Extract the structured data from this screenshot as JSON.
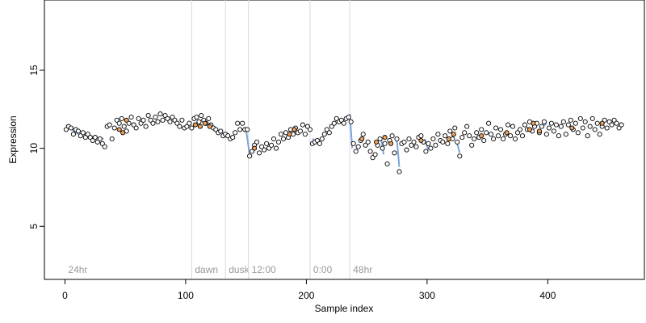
{
  "chart_data": {
    "type": "scatter",
    "title": "",
    "xlabel": "Sample index",
    "ylabel": "Expression",
    "xlim": [
      -17,
      480
    ],
    "ylim": [
      1.6,
      19.5
    ],
    "xticks": [
      0,
      100,
      200,
      300,
      400
    ],
    "yticks": [
      5,
      10,
      15
    ],
    "grid": false,
    "legend": "none",
    "colors": {
      "point_stroke": "#000000",
      "point_fill_default": "#ffffff",
      "highlight_blue": "#5b8fd6",
      "highlight_orange": "#f0a05a",
      "segment_line": "#d9d9d9",
      "segment_label": "#999999"
    },
    "segments": [
      {
        "x": 0,
        "label": "24hr"
      },
      {
        "x": 105,
        "label": "dawn"
      },
      {
        "x": 133,
        "label": "dusk"
      },
      {
        "x": 152,
        "label": "12:00"
      },
      {
        "x": 203,
        "label": "0:00"
      },
      {
        "x": 236,
        "label": "48hr"
      }
    ],
    "series": [
      {
        "points": [
          [
            1,
            11.2
          ],
          [
            3,
            11.4
          ],
          [
            5,
            11.3
          ],
          [
            7,
            10.9
          ],
          [
            9,
            11.2
          ],
          [
            11,
            11.1
          ],
          [
            13,
            10.8
          ],
          [
            15,
            11.0
          ],
          [
            17,
            10.7
          ],
          [
            19,
            10.9
          ],
          [
            21,
            10.7
          ],
          [
            23,
            10.5
          ],
          [
            25,
            10.7
          ],
          [
            27,
            10.4
          ],
          [
            29,
            10.6
          ],
          [
            31,
            10.3
          ],
          [
            33,
            10.1
          ],
          [
            35,
            11.4
          ],
          [
            37,
            11.5
          ],
          [
            39,
            10.6
          ],
          [
            41,
            11.3
          ],
          [
            43,
            11.8
          ],
          [
            45,
            11.6
          ],
          [
            47,
            11.9
          ],
          [
            49,
            11.4
          ],
          [
            51,
            11.1
          ],
          [
            53,
            11.6
          ],
          [
            55,
            12.0
          ],
          [
            57,
            11.5
          ],
          [
            59,
            11.3
          ],
          [
            61,
            11.9
          ],
          [
            63,
            11.6
          ],
          [
            65,
            11.8
          ],
          [
            67,
            11.4
          ],
          [
            69,
            12.1
          ],
          [
            71,
            11.8
          ],
          [
            73,
            11.6
          ],
          [
            75,
            12.0
          ],
          [
            77,
            11.7
          ],
          [
            79,
            12.2
          ],
          [
            81,
            11.8
          ],
          [
            83,
            12.1
          ],
          [
            85,
            11.9
          ],
          [
            87,
            11.7
          ],
          [
            89,
            12.0
          ],
          [
            91,
            11.8
          ],
          [
            93,
            11.6
          ],
          [
            95,
            11.4
          ],
          [
            97,
            11.8
          ],
          [
            99,
            11.3
          ],
          [
            101,
            11.4
          ],
          [
            103,
            11.6
          ],
          [
            105,
            11.3
          ],
          [
            107,
            11.9
          ],
          [
            109,
            12.0
          ],
          [
            111,
            11.7
          ],
          [
            113,
            12.1
          ],
          [
            115,
            11.8
          ],
          [
            117,
            11.6
          ],
          [
            119,
            11.9
          ],
          [
            121,
            11.5
          ],
          [
            123,
            11.3
          ],
          [
            125,
            11.2
          ],
          [
            127,
            11.0
          ],
          [
            129,
            11.1
          ],
          [
            131,
            10.8
          ],
          [
            133,
            10.9
          ],
          [
            135,
            10.8
          ],
          [
            137,
            10.6
          ],
          [
            139,
            10.7
          ],
          [
            141,
            11.0
          ],
          [
            143,
            11.6
          ],
          [
            145,
            11.2
          ],
          [
            147,
            11.6
          ],
          [
            149,
            11.2
          ],
          [
            151,
            11.2
          ],
          [
            153,
            9.5
          ],
          [
            155,
            9.8
          ],
          [
            157,
            10.2
          ],
          [
            159,
            10.4
          ],
          [
            161,
            9.7
          ],
          [
            163,
            10.1
          ],
          [
            165,
            9.9
          ],
          [
            167,
            10.3
          ],
          [
            169,
            10.0
          ],
          [
            171,
            10.2
          ],
          [
            173,
            10.6
          ],
          [
            175,
            10.0
          ],
          [
            177,
            10.4
          ],
          [
            179,
            10.9
          ],
          [
            181,
            10.6
          ],
          [
            183,
            11.0
          ],
          [
            185,
            10.7
          ],
          [
            187,
            11.2
          ],
          [
            189,
            10.9
          ],
          [
            191,
            11.3
          ],
          [
            193,
            11.0
          ],
          [
            195,
            11.1
          ],
          [
            197,
            11.5
          ],
          [
            199,
            10.9
          ],
          [
            201,
            11.4
          ],
          [
            203,
            11.2
          ],
          [
            205,
            10.3
          ],
          [
            207,
            10.4
          ],
          [
            209,
            10.5
          ],
          [
            211,
            10.3
          ],
          [
            213,
            10.6
          ],
          [
            215,
            10.9
          ],
          [
            217,
            11.2
          ],
          [
            219,
            11.0
          ],
          [
            221,
            11.4
          ],
          [
            223,
            11.6
          ],
          [
            225,
            11.9
          ],
          [
            227,
            11.7
          ],
          [
            229,
            11.8
          ],
          [
            231,
            11.6
          ],
          [
            233,
            11.9
          ],
          [
            235,
            12.0
          ],
          [
            237,
            11.7
          ],
          [
            239,
            10.3
          ],
          [
            241,
            9.8
          ],
          [
            243,
            10.1
          ],
          [
            245,
            10.5
          ],
          [
            247,
            10.9
          ],
          [
            249,
            10.2
          ],
          [
            251,
            10.4
          ],
          [
            253,
            9.8
          ],
          [
            255,
            9.4
          ],
          [
            257,
            9.6
          ],
          [
            259,
            10.2
          ],
          [
            261,
            10.6
          ],
          [
            263,
            10.0
          ],
          [
            265,
            10.3
          ],
          [
            267,
            9.0
          ],
          [
            269,
            10.5
          ],
          [
            271,
            10.8
          ],
          [
            273,
            9.7
          ],
          [
            275,
            10.6
          ],
          [
            277,
            8.5
          ],
          [
            279,
            10.3
          ],
          [
            281,
            10.4
          ],
          [
            283,
            9.9
          ],
          [
            285,
            10.6
          ],
          [
            287,
            10.2
          ],
          [
            289,
            10.4
          ],
          [
            291,
            10.1
          ],
          [
            293,
            10.7
          ],
          [
            295,
            10.8
          ],
          [
            297,
            10.4
          ],
          [
            299,
            9.8
          ],
          [
            301,
            10.3
          ],
          [
            303,
            10.0
          ],
          [
            305,
            10.6
          ],
          [
            307,
            10.2
          ],
          [
            309,
            10.9
          ],
          [
            311,
            10.5
          ],
          [
            313,
            10.4
          ],
          [
            315,
            10.8
          ],
          [
            317,
            10.3
          ],
          [
            319,
            11.1
          ],
          [
            321,
            10.6
          ],
          [
            323,
            11.3
          ],
          [
            325,
            10.4
          ],
          [
            327,
            9.5
          ],
          [
            329,
            10.7
          ],
          [
            331,
            11.0
          ],
          [
            333,
            11.4
          ],
          [
            335,
            10.8
          ],
          [
            337,
            10.2
          ],
          [
            339,
            10.6
          ],
          [
            341,
            11.0
          ],
          [
            343,
            10.7
          ],
          [
            345,
            11.2
          ],
          [
            347,
            10.5
          ],
          [
            349,
            11.0
          ],
          [
            351,
            11.6
          ],
          [
            353,
            10.9
          ],
          [
            355,
            10.6
          ],
          [
            357,
            11.3
          ],
          [
            359,
            10.8
          ],
          [
            361,
            11.2
          ],
          [
            363,
            10.6
          ],
          [
            365,
            10.9
          ],
          [
            367,
            11.5
          ],
          [
            369,
            10.8
          ],
          [
            371,
            11.4
          ],
          [
            373,
            10.6
          ],
          [
            375,
            11.0
          ],
          [
            377,
            11.2
          ],
          [
            379,
            10.8
          ],
          [
            381,
            11.5
          ],
          [
            383,
            11.2
          ],
          [
            385,
            11.7
          ],
          [
            387,
            11.1
          ],
          [
            389,
            11.4
          ],
          [
            391,
            11.6
          ],
          [
            393,
            11.0
          ],
          [
            395,
            11.4
          ],
          [
            397,
            11.7
          ],
          [
            399,
            10.9
          ],
          [
            401,
            11.3
          ],
          [
            403,
            11.6
          ],
          [
            405,
            11.1
          ],
          [
            407,
            11.5
          ],
          [
            409,
            10.8
          ],
          [
            411,
            11.4
          ],
          [
            413,
            11.7
          ],
          [
            415,
            10.9
          ],
          [
            417,
            11.5
          ],
          [
            419,
            11.8
          ],
          [
            421,
            11.2
          ],
          [
            423,
            11.6
          ],
          [
            425,
            11.0
          ],
          [
            427,
            11.9
          ],
          [
            429,
            11.3
          ],
          [
            431,
            11.7
          ],
          [
            433,
            10.8
          ],
          [
            435,
            11.4
          ],
          [
            437,
            11.9
          ],
          [
            439,
            11.2
          ],
          [
            441,
            11.6
          ],
          [
            443,
            10.9
          ],
          [
            445,
            11.4
          ],
          [
            447,
            11.8
          ],
          [
            449,
            11.3
          ],
          [
            451,
            11.7
          ],
          [
            453,
            11.5
          ],
          [
            455,
            11.8
          ],
          [
            457,
            11.6
          ],
          [
            459,
            11.3
          ],
          [
            461,
            11.5
          ]
        ],
        "orange_points": [
          [
            45,
            11.2
          ],
          [
            48,
            11.0
          ],
          [
            51,
            11.8
          ],
          [
            108,
            11.5
          ],
          [
            112,
            11.4
          ],
          [
            116,
            11.6
          ],
          [
            120,
            11.4
          ],
          [
            157,
            10.0
          ],
          [
            186,
            10.9
          ],
          [
            190,
            11.2
          ],
          [
            246,
            10.6
          ],
          [
            258,
            10.4
          ],
          [
            265,
            10.7
          ],
          [
            270,
            10.3
          ],
          [
            295,
            10.5
          ],
          [
            318,
            10.6
          ],
          [
            322,
            10.9
          ],
          [
            345,
            10.8
          ],
          [
            366,
            11.0
          ],
          [
            385,
            11.2
          ],
          [
            388,
            11.6
          ],
          [
            393,
            11.1
          ],
          [
            420,
            11.3
          ],
          [
            445,
            11.6
          ]
        ],
        "blue_segments": [
          [
            [
              1,
              11.5
            ],
            [
              6,
              11.2
            ],
            [
              11,
              10.9
            ]
          ],
          [
            [
              14,
              11.0
            ],
            [
              20,
              10.8
            ],
            [
              26,
              10.7
            ],
            [
              32,
              10.6
            ]
          ],
          [
            [
              130,
              11.0
            ],
            [
              136,
              10.9
            ]
          ],
          [
            [
              150,
              11.2
            ],
            [
              153,
              9.6
            ]
          ],
          [
            [
              205,
              10.6
            ],
            [
              211,
              10.4
            ]
          ],
          [
            [
              236,
              12.2
            ],
            [
              238,
              10.0
            ]
          ],
          [
            [
              262,
              10.6
            ],
            [
              264,
              9.6
            ]
          ],
          [
            [
              275,
              10.5
            ],
            [
              277,
              8.8
            ]
          ],
          [
            [
              298,
              10.6
            ],
            [
              301,
              9.9
            ]
          ],
          [
            [
              325,
              10.3
            ],
            [
              327,
              9.7
            ]
          ],
          [
            [
              396,
              11.4
            ],
            [
              399,
              11.6
            ]
          ]
        ]
      }
    ]
  }
}
